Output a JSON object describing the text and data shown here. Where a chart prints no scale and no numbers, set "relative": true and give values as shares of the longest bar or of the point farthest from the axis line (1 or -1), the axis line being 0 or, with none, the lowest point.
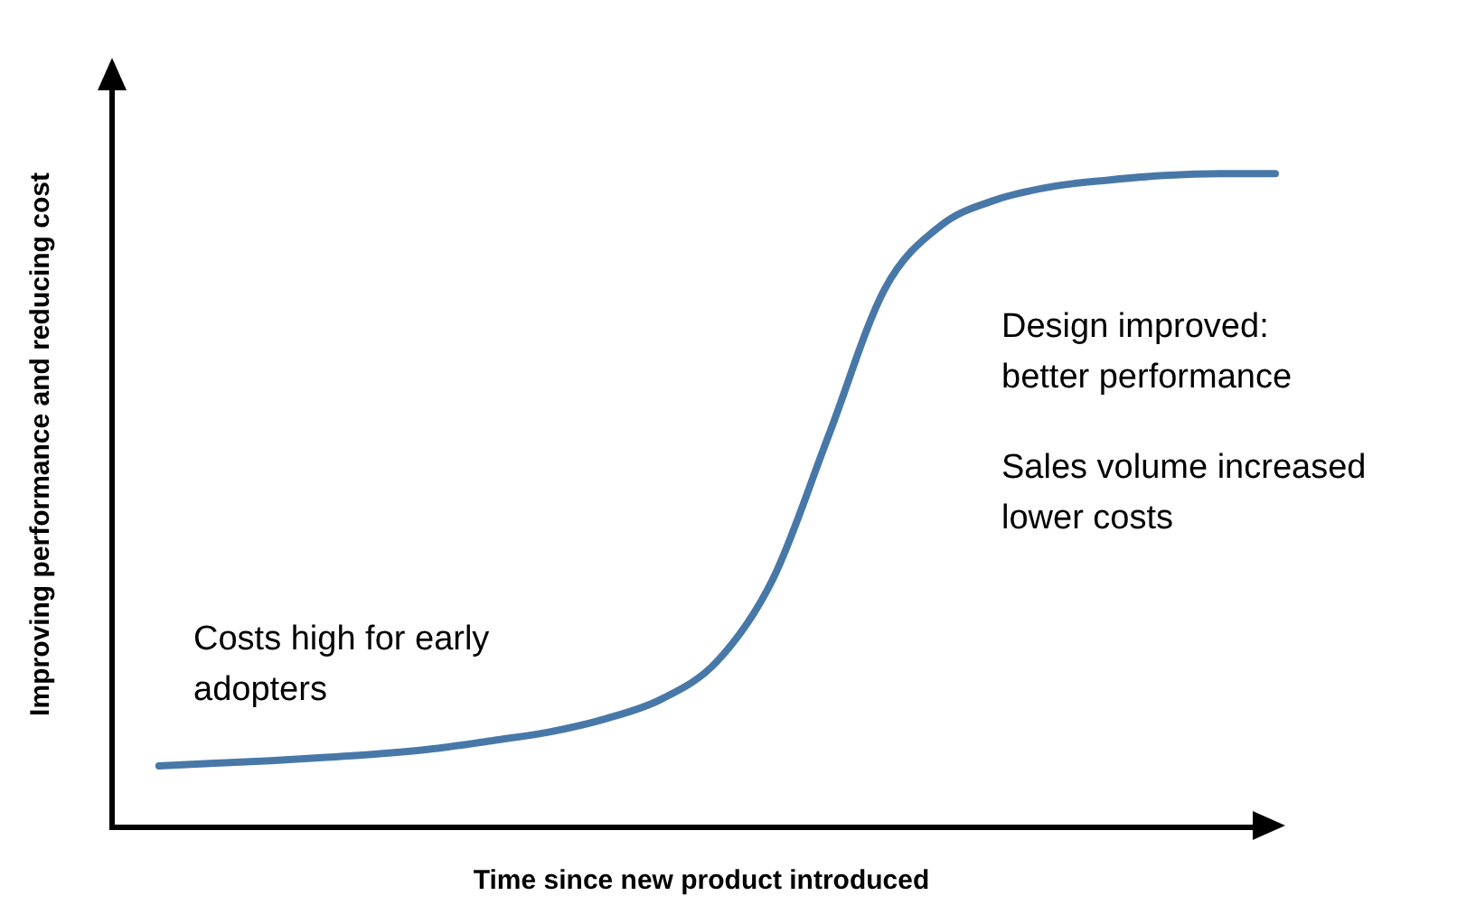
{
  "chart_data": {
    "type": "line",
    "relative": true,
    "xlabel": "Time since new product introduced",
    "ylabel": "Improving performance and reducing cost",
    "categories": [
      null,
      null,
      null,
      null,
      null,
      null,
      null,
      null,
      null,
      null,
      null,
      null,
      null,
      null,
      null,
      null,
      null,
      null,
      null,
      null,
      null
    ],
    "series": [
      {
        "color": "#4878a8",
        "values": [
          0.094,
          0.098,
          0.102,
          0.107,
          0.113,
          0.121,
          0.133,
          0.146,
          0.166,
          0.196,
          0.254,
          0.38,
          0.6,
          0.823,
          0.92,
          0.96,
          0.98,
          0.99,
          0.997,
          1,
          1
        ]
      }
    ],
    "annotations": [
      "Costs high for early\nadopters",
      "Design improved:\nbetter performance",
      "Sales volume increased\nlower costs"
    ],
    "grid": false,
    "legend": false,
    "marker": "none",
    "line_style": "solid"
  }
}
